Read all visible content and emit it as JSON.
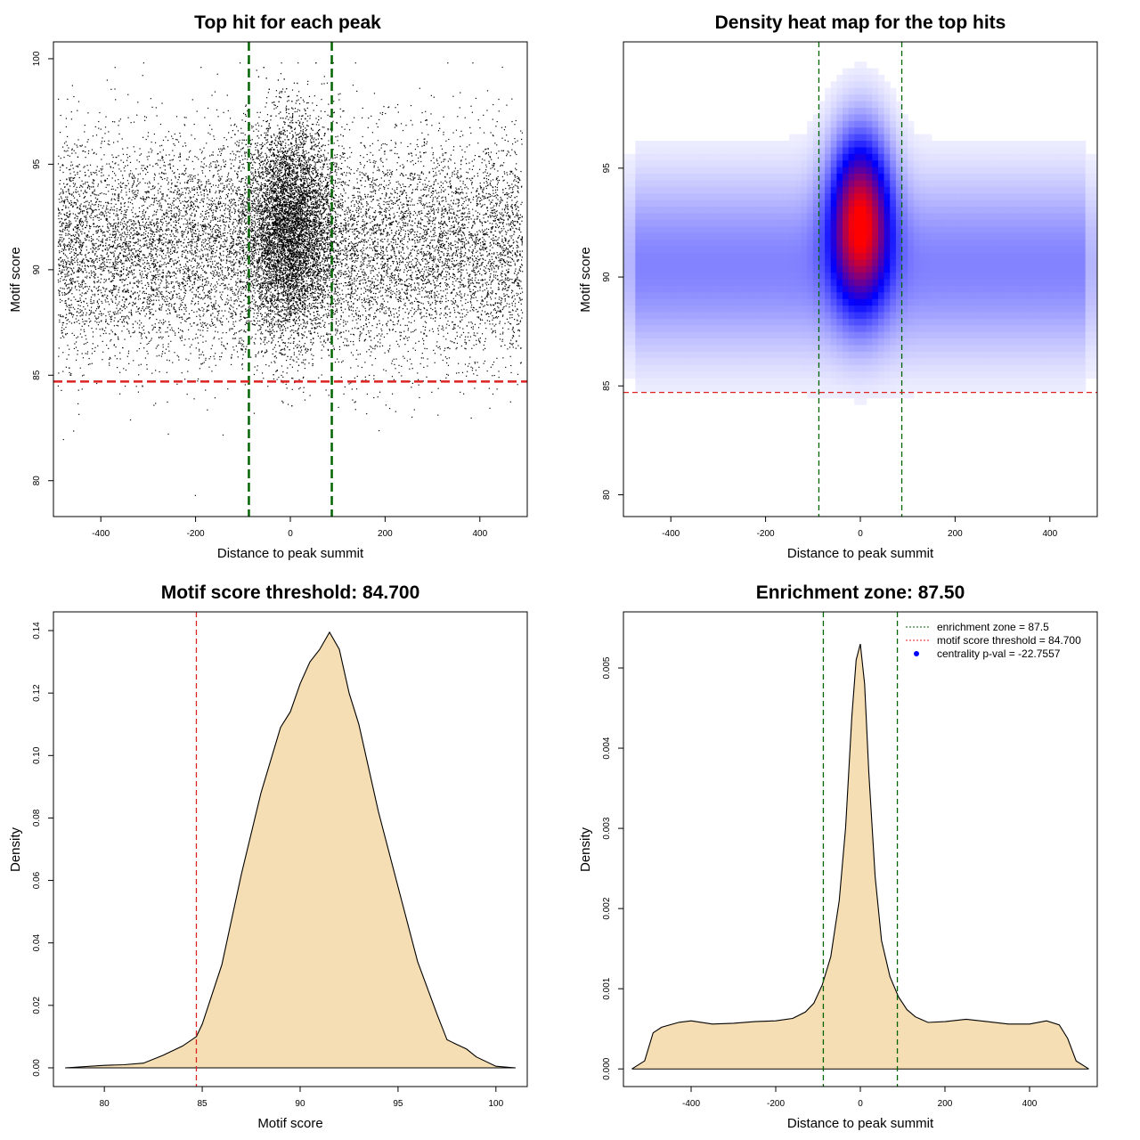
{
  "colors": {
    "enrichment_line": "#006400",
    "threshold_line": "#dd2222",
    "density_fill": "#f5deb3",
    "heat_low": "#ffffff",
    "heat_mid": "#0000ff",
    "heat_high": "#ff0000",
    "point": "#000000",
    "legend_pval_marker": "#0000ff"
  },
  "chart_data": [
    {
      "id": "scatter",
      "type": "scatter",
      "title": "Top hit for each peak",
      "xlabel": "Distance to peak summit",
      "ylabel": "Motif score",
      "xlim": [
        -500,
        500
      ],
      "ylim": [
        78.3,
        100.8
      ],
      "xticks": [
        -400,
        -200,
        0,
        200,
        400
      ],
      "yticks": [
        80,
        85,
        90,
        95,
        100
      ],
      "vlines": [
        -87.5,
        87.5
      ],
      "hline": 84.7,
      "point_model": {
        "n_background": 12000,
        "background_x_range": [
          -490,
          490
        ],
        "background_score_mean": 91.0,
        "background_score_sd": 2.6,
        "n_central": 6500,
        "central_x_sd": 45,
        "central_score_mean": 92.0,
        "central_score_sd": 2.5,
        "score_range": [
          79.3,
          99.8
        ]
      }
    },
    {
      "id": "heatmap",
      "type": "heatmap",
      "title": "Density heat map for the top hits",
      "xlabel": "Distance to peak summit",
      "ylabel": "Motif score",
      "xlim": [
        -500,
        500
      ],
      "ylim": [
        79,
        100.8
      ],
      "xticks": [
        -400,
        -200,
        0,
        200,
        400
      ],
      "yticks": [
        80,
        85,
        90,
        95
      ],
      "vlines": [
        -87.5,
        87.5
      ],
      "hline": 84.7,
      "density_model": {
        "peak_x": 0,
        "peak_score": 92.5,
        "central_x_sd": 40,
        "central_score_sd": 2.4,
        "background_score_mean": 90.5,
        "background_score_sd": 2.5
      }
    },
    {
      "id": "score_density",
      "type": "area",
      "title": "Motif score threshold: 84.700",
      "xlabel": "Motif score",
      "ylabel": "Density",
      "xlim": [
        77.4,
        101.6
      ],
      "ylim": [
        -0.006,
        0.146
      ],
      "xticks": [
        80,
        85,
        90,
        95,
        100
      ],
      "yticks": [
        0.0,
        0.02,
        0.04,
        0.06,
        0.08,
        0.1,
        0.12,
        0.14
      ],
      "ytick_labels": [
        "0.00",
        "0.02",
        "0.04",
        "0.06",
        "0.08",
        "0.10",
        "0.12",
        "0.14"
      ],
      "vline": 84.7,
      "x": [
        78.0,
        80.0,
        81.0,
        82.0,
        83.0,
        84.0,
        84.7,
        85.0,
        86.0,
        87.0,
        88.0,
        89.0,
        89.5,
        90.0,
        90.5,
        91.0,
        91.5,
        92.0,
        92.5,
        93.0,
        94.0,
        95.0,
        96.0,
        97.0,
        97.5,
        98.0,
        98.5,
        99.0,
        100.0,
        101.0
      ],
      "y": [
        0.0,
        0.0008,
        0.001,
        0.0015,
        0.004,
        0.007,
        0.01,
        0.014,
        0.033,
        0.062,
        0.088,
        0.109,
        0.114,
        0.123,
        0.13,
        0.134,
        0.1395,
        0.134,
        0.12,
        0.11,
        0.082,
        0.058,
        0.034,
        0.017,
        0.009,
        0.0075,
        0.006,
        0.0035,
        0.0005,
        0.0
      ]
    },
    {
      "id": "distance_density",
      "type": "area",
      "title": "Enrichment zone: 87.50",
      "xlabel": "Distance to peak summit",
      "ylabel": "Density",
      "xlim": [
        -560,
        560
      ],
      "ylim": [
        -0.00022,
        0.0057
      ],
      "xticks": [
        -400,
        -200,
        0,
        200,
        400
      ],
      "yticks": [
        0.0,
        0.001,
        0.002,
        0.003,
        0.004,
        0.005
      ],
      "ytick_labels": [
        "0.000",
        "0.001",
        "0.002",
        "0.003",
        "0.004",
        "0.005"
      ],
      "vlines": [
        -87.5,
        87.5
      ],
      "x": [
        -540,
        -510,
        -490,
        -470,
        -430,
        -400,
        -350,
        -300,
        -250,
        -200,
        -160,
        -130,
        -110,
        -90,
        -70,
        -50,
        -35,
        -20,
        -10,
        0,
        10,
        20,
        35,
        50,
        70,
        90,
        110,
        130,
        160,
        200,
        250,
        300,
        350,
        400,
        440,
        470,
        490,
        510,
        540
      ],
      "y": [
        0.0,
        0.0001,
        0.00045,
        0.00052,
        0.00058,
        0.0006,
        0.00056,
        0.00057,
        0.00059,
        0.0006,
        0.00063,
        0.00071,
        0.00082,
        0.00105,
        0.0014,
        0.0021,
        0.003,
        0.0044,
        0.0051,
        0.0053,
        0.0048,
        0.0037,
        0.0024,
        0.0016,
        0.00115,
        0.0009,
        0.00074,
        0.00065,
        0.00058,
        0.00059,
        0.00062,
        0.00059,
        0.00056,
        0.00056,
        0.0006,
        0.00055,
        0.00038,
        0.0001,
        0.0
      ],
      "legend": {
        "placement": "top-right",
        "entries": [
          "enrichment zone = 87.5",
          "motif score threshold = 84.700",
          "centrality p-val = -22.7557"
        ]
      }
    }
  ]
}
